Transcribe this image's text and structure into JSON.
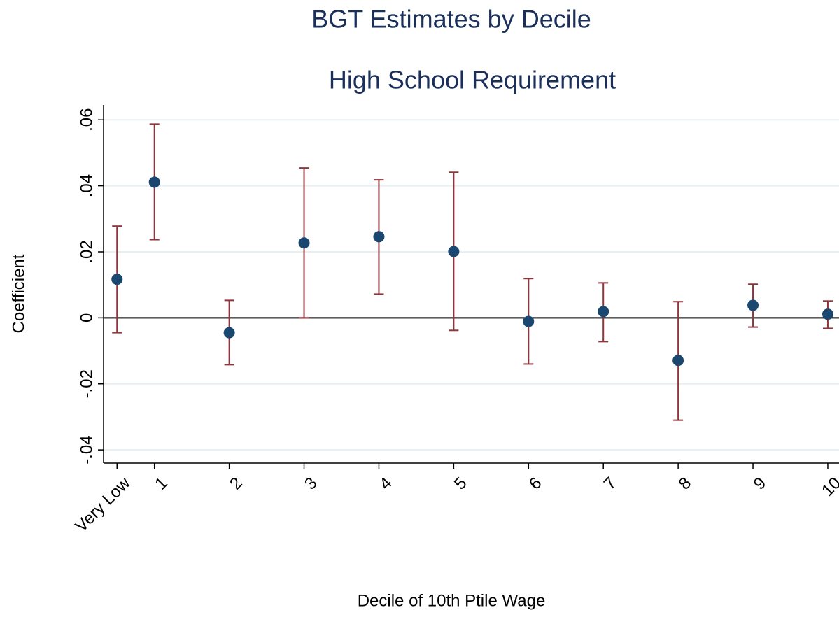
{
  "chart_data": {
    "type": "errorbar",
    "title": "BGT Estimates by Decile",
    "subtitle": "High School Requirement",
    "x_label": "Decile of 10th Ptile Wage",
    "y_label": "Coefficient",
    "x": [
      0.5,
      1,
      2,
      3,
      4,
      5,
      6,
      7,
      8,
      9,
      10
    ],
    "series": [
      {
        "color": "#1a476f",
        "bar_color": "#90353b",
        "values": [
          0.0117,
          0.0411,
          -0.0045,
          0.0227,
          0.0246,
          0.0201,
          -0.0011,
          0.0019,
          -0.0129,
          0.0038,
          0.0011
        ],
        "lower": [
          -0.0045,
          0.0237,
          -0.0142,
          0.0,
          0.0072,
          -0.0038,
          -0.014,
          -0.0072,
          -0.031,
          -0.0028,
          -0.0032
        ],
        "upper": [
          0.0278,
          0.0587,
          0.0053,
          0.0454,
          0.0418,
          0.0441,
          0.0119,
          0.0106,
          0.0049,
          0.0102,
          0.0051
        ]
      }
    ],
    "xlim": [
      0.32,
      10.15
    ],
    "xticks": [
      {
        "value": 0.5,
        "label": "Very Low"
      },
      1,
      2,
      3,
      4,
      5,
      6,
      7,
      8,
      9,
      10
    ],
    "ylim": [
      -0.044,
      0.0645
    ],
    "yticks": [
      {
        "value": -0.04,
        "label": "-.04"
      },
      {
        "value": -0.02,
        "label": "-.02"
      },
      0,
      {
        "value": 0.02,
        "label": ".02"
      },
      {
        "value": 0.04,
        "label": ".04"
      },
      {
        "value": 0.06,
        "label": ".06"
      }
    ],
    "reference_line": 0,
    "grid": true
  }
}
